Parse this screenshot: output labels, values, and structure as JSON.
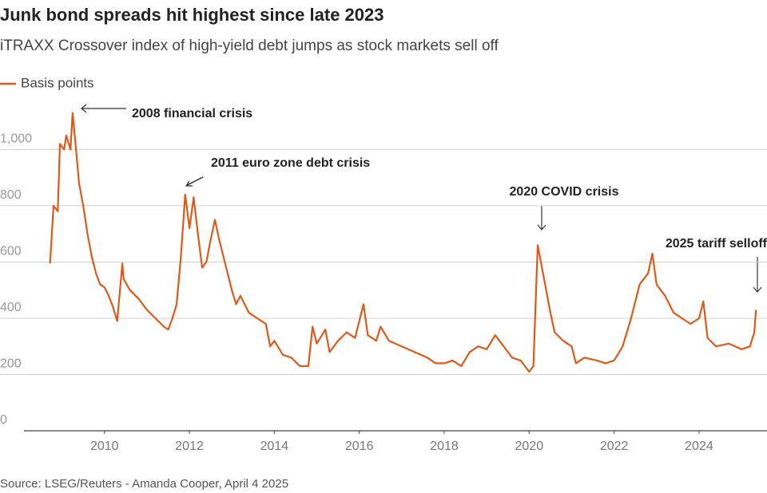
{
  "chart_data": {
    "type": "line",
    "title": "Junk bond spreads hit highest since late 2023",
    "subtitle": "iTRAXX Crossover index of high-yield debt jumps as stock markets sell off",
    "source": "Source: LSEG/Reuters - Amanda Cooper, April 4 2025",
    "x": [
      2008.72,
      2008.8,
      2008.9,
      2008.95,
      2009.05,
      2009.1,
      2009.2,
      2009.25,
      2009.3,
      2009.4,
      2009.5,
      2009.6,
      2009.7,
      2009.8,
      2009.9,
      2010.0,
      2010.1,
      2010.2,
      2010.3,
      2010.42,
      2010.45,
      2010.6,
      2010.8,
      2011.0,
      2011.2,
      2011.4,
      2011.5,
      2011.6,
      2011.7,
      2011.8,
      2011.9,
      2012.0,
      2012.1,
      2012.2,
      2012.3,
      2012.4,
      2012.5,
      2012.6,
      2012.7,
      2012.8,
      2012.9,
      2013.0,
      2013.1,
      2013.2,
      2013.4,
      2013.6,
      2013.8,
      2013.9,
      2014.0,
      2014.2,
      2014.4,
      2014.6,
      2014.8,
      2014.9,
      2015.0,
      2015.2,
      2015.3,
      2015.5,
      2015.7,
      2015.9,
      2016.0,
      2016.1,
      2016.2,
      2016.4,
      2016.5,
      2016.7,
      2017.0,
      2017.3,
      2017.6,
      2017.8,
      2018.0,
      2018.2,
      2018.4,
      2018.6,
      2018.8,
      2019.0,
      2019.2,
      2019.4,
      2019.6,
      2019.8,
      2020.0,
      2020.1,
      2020.2,
      2020.3,
      2020.4,
      2020.5,
      2020.6,
      2020.8,
      2021.0,
      2021.1,
      2021.3,
      2021.6,
      2021.8,
      2022.0,
      2022.2,
      2022.4,
      2022.6,
      2022.8,
      2022.9,
      2023.0,
      2023.2,
      2023.4,
      2023.6,
      2023.8,
      2024.0,
      2024.1,
      2024.2,
      2024.4,
      2024.7,
      2025.0,
      2025.2,
      2025.3,
      2025.34
    ],
    "series": [
      {
        "name": "Basis points",
        "color": "#dc5a1a",
        "values": [
          595,
          800,
          780,
          1020,
          1000,
          1050,
          1000,
          1130,
          1050,
          880,
          800,
          700,
          620,
          560,
          520,
          510,
          480,
          440,
          390,
          595,
          540,
          500,
          470,
          430,
          400,
          370,
          360,
          400,
          450,
          620,
          840,
          720,
          830,
          700,
          580,
          600,
          680,
          750,
          680,
          620,
          560,
          500,
          450,
          480,
          420,
          400,
          380,
          300,
          320,
          270,
          260,
          230,
          230,
          370,
          310,
          360,
          280,
          320,
          350,
          330,
          390,
          450,
          340,
          320,
          370,
          320,
          300,
          280,
          260,
          240,
          240,
          250,
          230,
          280,
          300,
          290,
          340,
          300,
          260,
          250,
          210,
          230,
          660,
          580,
          500,
          420,
          350,
          320,
          300,
          240,
          260,
          250,
          240,
          250,
          300,
          400,
          520,
          560,
          630,
          520,
          480,
          420,
          400,
          380,
          400,
          460,
          330,
          300,
          310,
          290,
          300,
          350,
          430
        ]
      }
    ],
    "xlim": [
      2007.54,
      2025.6
    ],
    "xticks": [
      2010,
      2012,
      2014,
      2016,
      2018,
      2020,
      2022,
      2024
    ],
    "ylim": [
      0,
      1160
    ],
    "yticks": [
      0,
      200,
      400,
      600,
      800,
      {
        "value": 1000,
        "label": "1,000"
      }
    ],
    "grid": true,
    "annotations": [
      {
        "text": "2008 financial crisis"
      },
      {
        "text": "2011 euro zone debt crisis"
      },
      {
        "text": "2020 COVID crisis"
      },
      {
        "text": "2025 tariff selloff"
      }
    ]
  }
}
